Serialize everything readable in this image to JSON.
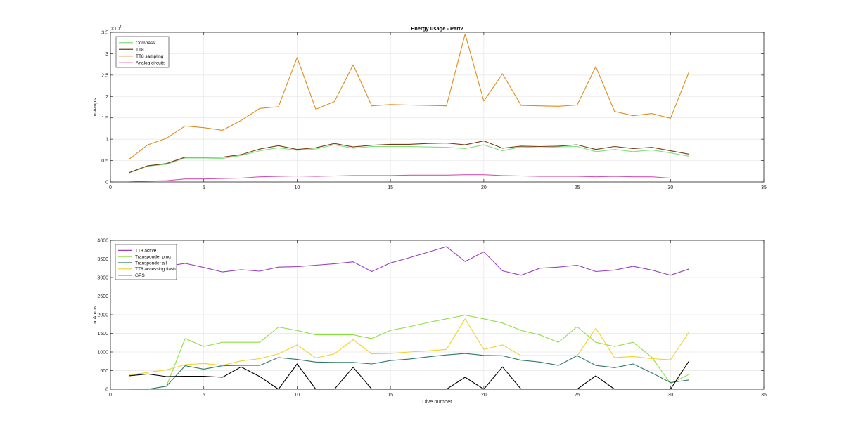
{
  "chart_data": [
    {
      "type": "line",
      "title": "Energy usage - Part2",
      "xlabel": "",
      "ylabel": "mAmps",
      "exponent_label": "×10⁴",
      "exponent_base": "×10",
      "exponent_power": "4",
      "xlim": [
        0,
        35
      ],
      "ylim": [
        0,
        35000
      ],
      "xticks": [
        0,
        5,
        10,
        15,
        20,
        25,
        30,
        35
      ],
      "yticks": [
        0,
        5000,
        10000,
        15000,
        20000,
        25000,
        30000,
        35000
      ],
      "ytick_labels": [
        "0",
        "0.5",
        "1",
        "1.5",
        "2",
        "2.5",
        "3",
        "3.5"
      ],
      "grid": true,
      "legend_position": "top-left",
      "x": [
        1,
        2,
        3,
        4,
        5,
        6,
        7,
        8,
        9,
        10,
        11,
        12,
        13,
        14,
        15,
        16,
        17,
        18,
        19,
        20,
        21,
        22,
        23,
        24,
        25,
        26,
        27,
        28,
        29,
        30,
        31
      ],
      "series": [
        {
          "name": "Compass",
          "color": "#7ee07e",
          "values": [
            2100,
            3700,
            4100,
            5600,
            5600,
            5500,
            6200,
            7300,
            8000,
            7400,
            7700,
            8700,
            7900,
            8300,
            8300,
            8300,
            8200,
            8100,
            7800,
            8700,
            7300,
            8200,
            8000,
            8200,
            8300,
            7100,
            7600,
            7100,
            7500,
            6800,
            6000
          ]
        },
        {
          "name": "TT8",
          "color": "#7a3b10",
          "values": [
            2200,
            3800,
            4300,
            5800,
            5800,
            5800,
            6400,
            7700,
            8500,
            7600,
            8000,
            9000,
            8200,
            8600,
            8800,
            8800,
            9000,
            9100,
            8700,
            9600,
            7900,
            8400,
            8300,
            8400,
            8700,
            7600,
            8300,
            7800,
            8100,
            7300,
            6500
          ]
        },
        {
          "name": "TT8 sampling",
          "color": "#e08c1a",
          "values": [
            5300,
            8700,
            10200,
            13100,
            12700,
            12100,
            14400,
            17200,
            17600,
            29100,
            17000,
            18800,
            27400,
            17800,
            18100,
            18000,
            17900,
            17800,
            34600,
            18900,
            25300,
            17900,
            17800,
            17700,
            18000,
            27000,
            16500,
            15500,
            16000,
            14900,
            25800
          ]
        },
        {
          "name": "Analog circuits",
          "color": "#d256b8",
          "values": [
            0,
            200,
            300,
            700,
            700,
            800,
            900,
            1200,
            1300,
            1400,
            1300,
            1400,
            1500,
            1500,
            1500,
            1600,
            1600,
            1600,
            1700,
            1700,
            1500,
            1400,
            1300,
            1300,
            1300,
            1200,
            1300,
            1200,
            1200,
            900,
            900
          ]
        }
      ]
    },
    {
      "type": "line",
      "title": "",
      "xlabel": "Dive number",
      "ylabel": "mAmps",
      "xlim": [
        0,
        35
      ],
      "ylim": [
        0,
        4000
      ],
      "xticks": [
        0,
        5,
        10,
        15,
        20,
        25,
        30,
        35
      ],
      "yticks": [
        0,
        500,
        1000,
        1500,
        2000,
        2500,
        3000,
        3500,
        4000
      ],
      "ytick_labels": [
        "0",
        "500",
        "1000",
        "1500",
        "2000",
        "2500",
        "3000",
        "3500",
        "4000"
      ],
      "grid": true,
      "legend_position": "top-left",
      "x": [
        1,
        2,
        3,
        4,
        5,
        6,
        7,
        8,
        9,
        10,
        11,
        12,
        13,
        14,
        15,
        16,
        17,
        18,
        19,
        20,
        21,
        22,
        23,
        24,
        25,
        26,
        27,
        28,
        29,
        30,
        31
      ],
      "series": [
        {
          "name": "TT8 active",
          "color": "#9b3fbf",
          "values": [
            2950,
            3050,
            3300,
            3380,
            3270,
            3150,
            3210,
            3170,
            3280,
            3290,
            3330,
            3370,
            3420,
            3160,
            3390,
            3530,
            3680,
            3830,
            3430,
            3690,
            3180,
            3060,
            3250,
            3280,
            3330,
            3160,
            3200,
            3300,
            3200,
            3060,
            3230
          ]
        },
        {
          "name": "Transponder ping",
          "color": "#8ee040",
          "values": [
            0,
            0,
            80,
            1360,
            1150,
            1260,
            1260,
            1260,
            1670,
            1580,
            1460,
            1460,
            1460,
            1360,
            1580,
            1680,
            1790,
            1890,
            1990,
            1890,
            1780,
            1580,
            1460,
            1260,
            1680,
            1260,
            1150,
            1260,
            860,
            150,
            400
          ]
        },
        {
          "name": "Transponder all",
          "color": "#2f7a6a",
          "values": [
            0,
            0,
            80,
            630,
            540,
            630,
            640,
            640,
            850,
            800,
            730,
            720,
            720,
            680,
            770,
            810,
            870,
            920,
            960,
            910,
            900,
            780,
            730,
            640,
            900,
            640,
            580,
            680,
            440,
            180,
            250
          ]
        },
        {
          "name": "TT8 accessing flash",
          "color": "#f2d226",
          "values": [
            380,
            450,
            520,
            660,
            690,
            640,
            760,
            820,
            950,
            1190,
            840,
            950,
            1330,
            950,
            960,
            1000,
            1030,
            1070,
            1890,
            1070,
            1190,
            900,
            900,
            900,
            900,
            1640,
            850,
            880,
            820,
            790,
            1540
          ]
        },
        {
          "name": "GPS",
          "color": "#000000",
          "values": [
            360,
            410,
            340,
            350,
            350,
            320,
            600,
            340,
            0,
            680,
            0,
            0,
            590,
            0,
            0,
            0,
            0,
            0,
            320,
            0,
            600,
            0,
            0,
            0,
            0,
            360,
            0,
            0,
            0,
            0,
            760
          ]
        }
      ]
    }
  ]
}
